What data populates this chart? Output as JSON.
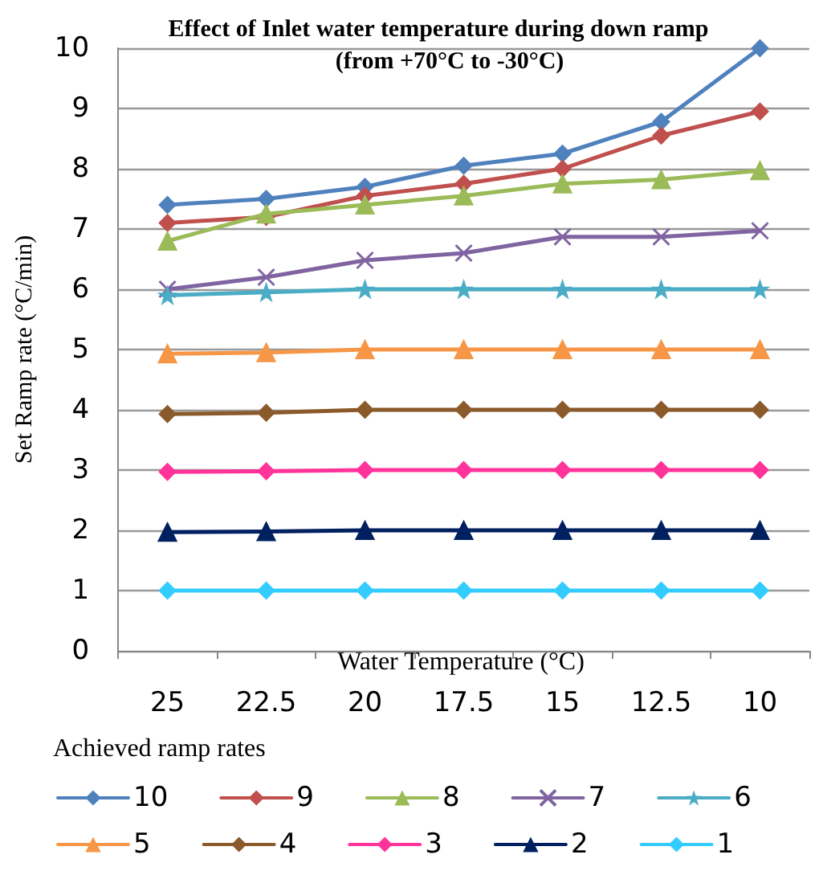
{
  "chart_data": {
    "type": "line",
    "title": "Effect of Inlet water temperature during down ramp",
    "subtitle": "(from +70°C to -30°C)",
    "xlabel": "Water Temperature (°C)",
    "ylabel": "Set Ramp rate (°C/min)",
    "legend_title": "Achieved ramp rates",
    "categories": [
      "25",
      "22.5",
      "20",
      "17.5",
      "15",
      "12.5",
      "10"
    ],
    "ylim": [
      0,
      10
    ],
    "yticks": [
      0,
      1,
      2,
      3,
      4,
      5,
      6,
      7,
      8,
      9,
      10
    ],
    "grid": "y",
    "legend": "bottom",
    "line_style": "solid",
    "series": [
      {
        "name": "10",
        "color": "#4f81bd",
        "marker": "diamond",
        "values": [
          7.4,
          7.5,
          7.7,
          8.05,
          8.25,
          8.78,
          10
        ]
      },
      {
        "name": "9",
        "color": "#c0504d",
        "marker": "diamond",
        "values": [
          7.1,
          7.2,
          7.55,
          7.75,
          8.0,
          8.55,
          8.95
        ]
      },
      {
        "name": "8",
        "color": "#9bbb59",
        "marker": "triangle",
        "values": [
          6.8,
          7.25,
          7.4,
          7.55,
          7.75,
          7.82,
          7.97
        ]
      },
      {
        "name": "7",
        "color": "#8064a2",
        "marker": "cross",
        "values": [
          6.0,
          6.2,
          6.48,
          6.6,
          6.87,
          6.87,
          6.97
        ]
      },
      {
        "name": "6",
        "color": "#4bacc6",
        "marker": "star",
        "values": [
          5.9,
          5.95,
          6,
          6,
          6,
          6,
          6
        ]
      },
      {
        "name": "5",
        "color": "#f79646",
        "marker": "triangle",
        "values": [
          4.93,
          4.95,
          5,
          5,
          5,
          5,
          5
        ]
      },
      {
        "name": "4",
        "color": "#8b5a2b",
        "marker": "diamond",
        "values": [
          3.93,
          3.95,
          4,
          4,
          4,
          4,
          4
        ]
      },
      {
        "name": "3",
        "color": "#ff3399",
        "marker": "diamond",
        "values": [
          2.97,
          2.98,
          3,
          3,
          3,
          3,
          3
        ]
      },
      {
        "name": "2",
        "color": "#002060",
        "marker": "triangle",
        "values": [
          1.97,
          1.98,
          2,
          2,
          2,
          2,
          2
        ]
      },
      {
        "name": "1",
        "color": "#33ccff",
        "marker": "diamond",
        "values": [
          1,
          1,
          1,
          1,
          1,
          1,
          1
        ]
      }
    ]
  }
}
